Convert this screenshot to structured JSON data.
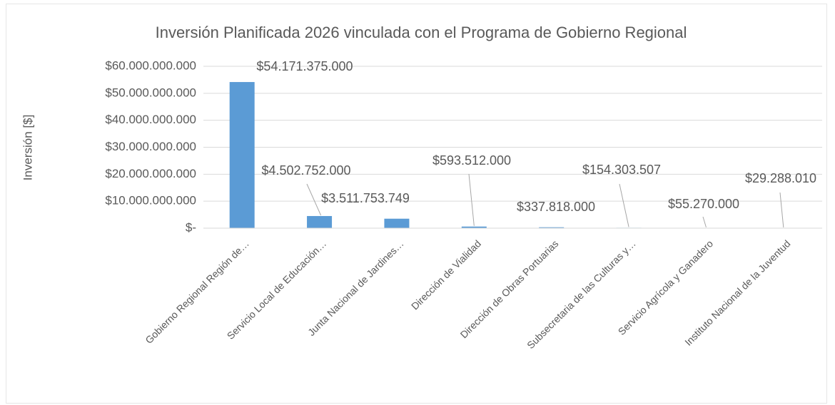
{
  "chart_data": {
    "type": "bar",
    "title": "Inversión Planificada 2026 vinculada con el Programa de Gobierno Regional",
    "y_label": "Inversión [$]",
    "categories": [
      "Gobierno Regional Región de…",
      "Servicio Local de Educación…",
      "Junta Nacional de Jardines…",
      "Dirección de Vialidad",
      "Dirección de Obras Portuarias",
      "Subsecretaria de las Culturas y…",
      "Servicio Agrícola y Ganadero",
      "Instituto Nacional de la Juventud"
    ],
    "values": [
      54171375000,
      4502752000,
      3511753749,
      593512000,
      337818000,
      154303507,
      55270000,
      29288010
    ],
    "value_labels": [
      "$54.171.375.000",
      "$4.502.752.000",
      "$3.511.753.749",
      "$593.512.000",
      "$337.818.000",
      "$154.303.507",
      "$55.270.000",
      "$29.288.010"
    ],
    "color": "#5b9bd5",
    "ylim": [
      0,
      60000000000
    ],
    "yticks": [
      {
        "value": 0,
        "label": "$-"
      },
      {
        "value": 10000000000,
        "label": "$10.000.000.000"
      },
      {
        "value": 20000000000,
        "label": "$20.000.000.000"
      },
      {
        "value": 30000000000,
        "label": "$30.000.000.000"
      },
      {
        "value": 40000000000,
        "label": "$40.000.000.000"
      },
      {
        "value": 50000000000,
        "label": "$50.000.000.000"
      },
      {
        "value": 60000000000,
        "label": "$60.000.000.000"
      }
    ],
    "grid": true
  }
}
